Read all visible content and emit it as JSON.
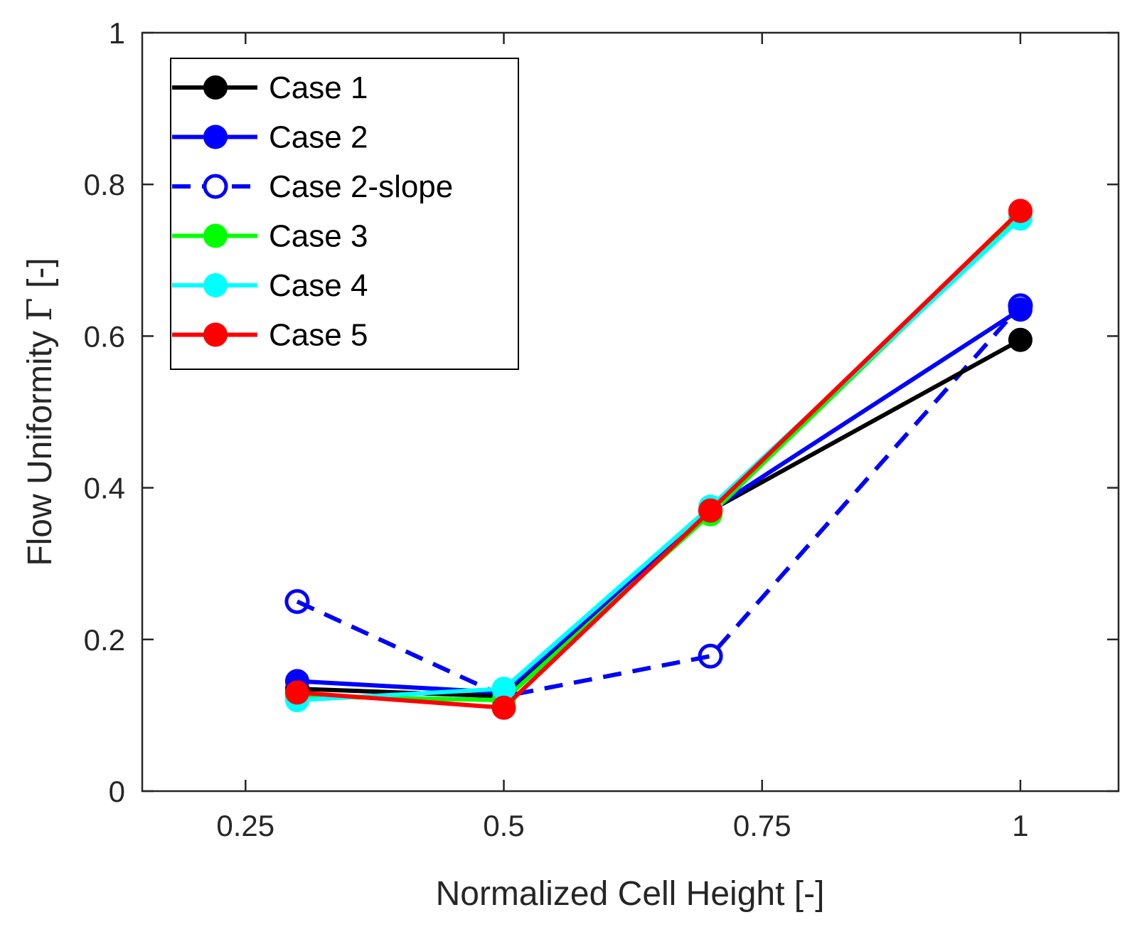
{
  "chart_data": {
    "type": "line",
    "title": "",
    "xlabel": "Normalized Cell Height [-]",
    "ylabel_prefix": "Flow Uniformity ",
    "ylabel_symbol": "Γ",
    "ylabel_suffix": " [-]",
    "xlim": [
      0.15,
      1.095
    ],
    "ylim": [
      0,
      1
    ],
    "xticks": [
      0.25,
      0.5,
      0.75,
      1
    ],
    "xtick_labels": [
      "0.25",
      "0.5",
      "0.75",
      "1"
    ],
    "yticks": [
      0,
      0.2,
      0.4,
      0.6,
      0.8,
      1
    ],
    "ytick_labels": [
      "0",
      "0.2",
      "0.4",
      "0.6",
      "0.8",
      "1"
    ],
    "grid": false,
    "legend_position": "top-left",
    "x": [
      0.3,
      0.5,
      0.7,
      1.0
    ],
    "series": [
      {
        "name": "Case 1",
        "values": [
          0.135,
          0.125,
          0.37,
          0.595
        ],
        "color": "#000000",
        "dashed": false,
        "filled": true
      },
      {
        "name": "Case 2",
        "values": [
          0.145,
          0.13,
          0.37,
          0.635
        ],
        "color": "#0000ff",
        "dashed": false,
        "filled": true
      },
      {
        "name": "Case 2-slope",
        "values": [
          0.25,
          0.125,
          0.178,
          0.64
        ],
        "color": "#0000ff",
        "dashed": true,
        "filled": false
      },
      {
        "name": "Case 3",
        "values": [
          0.125,
          0.12,
          0.365,
          0.76
        ],
        "color": "#00ff00",
        "dashed": false,
        "filled": true
      },
      {
        "name": "Case 4",
        "values": [
          0.12,
          0.135,
          0.375,
          0.755
        ],
        "color": "#00ffff",
        "dashed": false,
        "filled": true
      },
      {
        "name": "Case 5",
        "values": [
          0.13,
          0.11,
          0.37,
          0.765
        ],
        "color": "#ff0000",
        "dashed": false,
        "filled": true
      }
    ]
  }
}
